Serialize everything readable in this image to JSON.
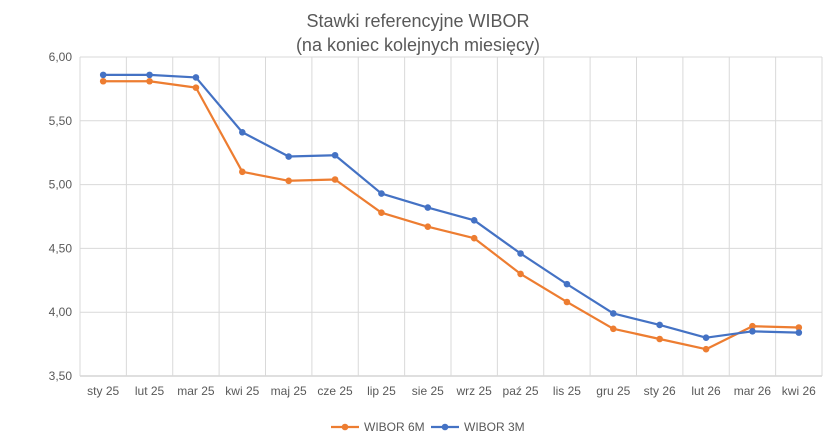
{
  "chart_data": {
    "type": "line",
    "title": "Stawki referencyjne WIBOR",
    "subtitle": "(na koniec kolejnych miesięcy)",
    "xlabel": "",
    "ylabel": "",
    "categories": [
      "sty 25",
      "lut 25",
      "mar 25",
      "kwi 25",
      "maj 25",
      "cze 25",
      "lip 25",
      "sie 25",
      "wrz 25",
      "paź 25",
      "lis 25",
      "gru 25",
      "sty 26",
      "lut 26",
      "mar 26",
      "kwi 26"
    ],
    "ylim": [
      3.5,
      6.0
    ],
    "yticks": [
      3.5,
      4.0,
      4.5,
      5.0,
      5.5,
      6.0
    ],
    "ytick_labels": [
      "3,50",
      "4,00",
      "4,50",
      "5,00",
      "5,50",
      "6,00"
    ],
    "grid": true,
    "legend_position": "bottom",
    "series": [
      {
        "name": "WIBOR 6M",
        "color": "#ed7d31",
        "values": [
          5.81,
          5.81,
          5.76,
          5.1,
          5.03,
          5.04,
          4.78,
          4.67,
          4.58,
          4.3,
          4.08,
          3.87,
          3.79,
          3.71,
          3.89,
          3.88
        ]
      },
      {
        "name": "WIBOR 3M",
        "color": "#4472c4",
        "values": [
          5.86,
          5.86,
          5.84,
          5.41,
          5.22,
          5.23,
          4.93,
          4.82,
          4.72,
          4.46,
          4.22,
          3.99,
          3.9,
          3.8,
          3.85,
          3.84
        ]
      }
    ]
  }
}
